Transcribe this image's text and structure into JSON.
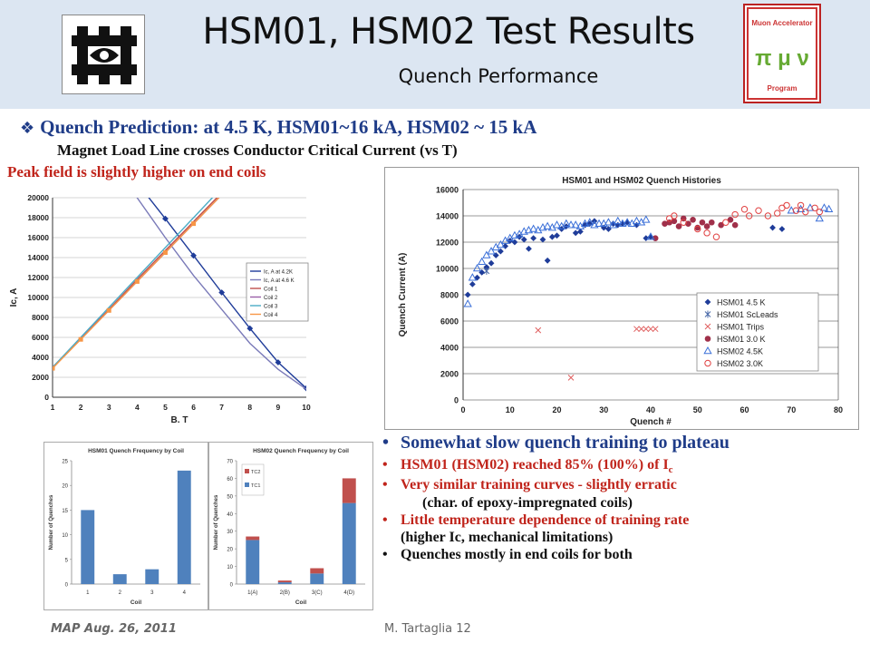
{
  "header": {
    "title": "HSM01, HSM02 Test Results",
    "subtitle": "Quench Performance"
  },
  "text": {
    "prediction": "Quench Prediction: at 4.5 K, HSM01~16 kA, HSM02 ~ 15 kA",
    "load_line": "Magnet Load Line crosses Conductor Critical Current (vs T)",
    "peak_field": "Peak field is slightly higher on end coils"
  },
  "bullets": [
    {
      "text": "Somewhat slow quench training to plateau",
      "style": "b1",
      "dot": "•"
    },
    {
      "text": "HSM01 (HSM02) reached 85% (100%) of I",
      "sub": "c",
      "style": "red",
      "dot": "•"
    },
    {
      "text": "Very similar training curves - slightly erratic",
      "style": "red",
      "dot": "•"
    },
    {
      "text": "(char. of epoxy-impregnated coils)",
      "style": "black indent",
      "dot": ""
    },
    {
      "text": "Little temperature dependence of training rate",
      "style": "red",
      "dot": "•"
    },
    {
      "text": "(higher Ic, mechanical limitations)",
      "style": "black cont",
      "dot": ""
    },
    {
      "text": "Quenches mostly in end coils for both",
      "style": "black",
      "dot": "•"
    }
  ],
  "footer": {
    "left": "MAP Aug. 26, 2011",
    "right": "M. Tartaglia    12"
  },
  "logos": {
    "fnal": "fermilab-logo",
    "map_lines": [
      "Muon Accelerator",
      "Program"
    ],
    "map_symbols": "π μ ν"
  },
  "chart_data": [
    {
      "type": "line",
      "xlabel": "B, T",
      "ylabel": "Ic, A",
      "xlim": [
        1,
        10
      ],
      "ylim": [
        0,
        20000
      ],
      "xticks": [
        1,
        2,
        3,
        4,
        5,
        6,
        7,
        8,
        9,
        10
      ],
      "yticks": [
        0,
        2000,
        4000,
        6000,
        8000,
        10000,
        12000,
        14000,
        16000,
        18000,
        20000
      ],
      "legend_position": "right",
      "series": [
        {
          "name": "Ic, A at 4.2K",
          "color": "#1f3c99",
          "marker": "diamond",
          "x": [
            4,
            5,
            6,
            7,
            8,
            9,
            10
          ],
          "y": [
            21500,
            17900,
            14200,
            10500,
            6900,
            3500,
            900
          ]
        },
        {
          "name": "Ic, A at 4.6 K",
          "color": "#7a7ab8",
          "marker": "none",
          "x": [
            3,
            4,
            5,
            6,
            7,
            8,
            9,
            10
          ],
          "y": [
            24000,
            20000,
            16000,
            12200,
            8800,
            5400,
            2800,
            800
          ]
        },
        {
          "name": "Coil 1",
          "color": "#c0504d",
          "marker": "none",
          "x": [
            1,
            2,
            3,
            4,
            5,
            6,
            7
          ],
          "y": [
            3000,
            5900,
            8800,
            11800,
            14700,
            17600,
            20500
          ]
        },
        {
          "name": "Coil 2",
          "color": "#9b5fa8",
          "marker": "none",
          "x": [
            1,
            2,
            3,
            4,
            5,
            6,
            7
          ],
          "y": [
            3000,
            5850,
            8700,
            11600,
            14500,
            17400,
            20300
          ]
        },
        {
          "name": "Coil 3",
          "color": "#4bacc6",
          "marker": "none",
          "x": [
            1,
            2,
            3,
            4,
            5,
            6,
            7
          ],
          "y": [
            3000,
            6000,
            9000,
            12000,
            15000,
            18000,
            21000
          ]
        },
        {
          "name": "Coil 4",
          "color": "#f79646",
          "marker": "square",
          "x": [
            1,
            2,
            3,
            4,
            5,
            6,
            7
          ],
          "y": [
            2900,
            5800,
            8700,
            11600,
            14500,
            17400,
            20300
          ]
        }
      ]
    },
    {
      "type": "scatter",
      "title": "HSM01 and HSM02 Quench Histories",
      "xlabel": "Quench #",
      "ylabel": "Quench Current (A)",
      "xlim": [
        0,
        80
      ],
      "ylim": [
        0,
        16000
      ],
      "xticks": [
        0,
        10,
        20,
        30,
        40,
        50,
        60,
        70,
        80
      ],
      "yticks": [
        0,
        2000,
        4000,
        6000,
        8000,
        10000,
        12000,
        14000,
        16000
      ],
      "legend_position": "bottom-right",
      "series": [
        {
          "name": "HSM01 4.5 K",
          "color": "#1f3c99",
          "marker": "diamond",
          "x": [
            1,
            2,
            3,
            4,
            5,
            6,
            7,
            8,
            9,
            10,
            11,
            12,
            13,
            14,
            15,
            17,
            18,
            19,
            20,
            21,
            22,
            24,
            25,
            26,
            27,
            28,
            30,
            31,
            32,
            33,
            34,
            35,
            37,
            39,
            40,
            66,
            68
          ],
          "y": [
            8000,
            8800,
            9300,
            9700,
            10100,
            10400,
            11000,
            11300,
            11700,
            12100,
            12000,
            12400,
            12200,
            11500,
            12300,
            12200,
            10600,
            12400,
            12500,
            13000,
            13200,
            12700,
            12800,
            13300,
            13400,
            13600,
            13100,
            13000,
            13400,
            13300,
            13400,
            13500,
            13300,
            12300,
            12400,
            13100,
            13000
          ]
        },
        {
          "name": "HSM01 ScLeads",
          "color": "#4a6aa8",
          "marker": "asterisk",
          "x": [
            5
          ],
          "y": [
            9800
          ]
        },
        {
          "name": "HSM01 Trips",
          "color": "#e06060",
          "marker": "x",
          "x": [
            16,
            23,
            37,
            38,
            39,
            40,
            41
          ],
          "y": [
            5300,
            1700,
            5400,
            5400,
            5400,
            5400,
            5400
          ]
        },
        {
          "name": "HSM01 3.0 K",
          "color": "#a0304a",
          "marker": "circle-filled",
          "x": [
            41,
            43,
            44,
            45,
            46,
            47,
            48,
            49,
            50,
            51,
            52,
            53,
            55,
            57,
            58
          ],
          "y": [
            12300,
            13400,
            13500,
            13600,
            13200,
            13800,
            13400,
            13700,
            13100,
            13500,
            13200,
            13500,
            13300,
            13700,
            13300
          ]
        },
        {
          "name": "HSM02 4.5K",
          "color": "#3a6fd8",
          "marker": "triangle",
          "x": [
            1,
            2,
            3,
            4,
            5,
            6,
            7,
            8,
            9,
            10,
            11,
            12,
            13,
            14,
            15,
            16,
            17,
            18,
            19,
            20,
            21,
            22,
            23,
            24,
            25,
            26,
            27,
            28,
            29,
            30,
            31,
            32,
            33,
            34,
            35,
            36,
            37,
            38,
            39,
            40,
            70,
            72,
            74,
            76,
            77,
            78
          ],
          "y": [
            7300,
            9300,
            10000,
            10500,
            11000,
            11300,
            11600,
            11800,
            12100,
            12300,
            12500,
            12600,
            12800,
            12900,
            13000,
            12900,
            13100,
            13200,
            13100,
            13300,
            13200,
            13400,
            13300,
            13300,
            13200,
            13400,
            13500,
            13300,
            13400,
            13400,
            13500,
            13300,
            13600,
            13400,
            13500,
            13400,
            13600,
            13500,
            13700,
            12400,
            14400,
            14500,
            14600,
            13800,
            14600,
            14500
          ]
        },
        {
          "name": "HSM02 3.0K",
          "color": "#e04040",
          "marker": "circle",
          "x": [
            44,
            45,
            47,
            50,
            52,
            54,
            56,
            58,
            60,
            61,
            63,
            65,
            67,
            68,
            69,
            71,
            72,
            73,
            75,
            76
          ],
          "y": [
            13800,
            14000,
            13500,
            13000,
            12700,
            12400,
            13500,
            14100,
            14500,
            14000,
            14400,
            14000,
            14200,
            14600,
            14800,
            14400,
            14800,
            14300,
            14600,
            14300
          ]
        }
      ]
    },
    {
      "type": "bar",
      "title": "HSM01 Quench Frequency by Coil",
      "xlabel": "Coil",
      "ylabel": "Number of Quenches",
      "ylim": [
        0,
        25
      ],
      "yticks": [
        0,
        5,
        10,
        15,
        20,
        25
      ],
      "categories": [
        "1",
        "2",
        "3",
        "4"
      ],
      "series": [
        {
          "color": "#4f81bd",
          "values": [
            15,
            2,
            3,
            23
          ]
        }
      ]
    },
    {
      "type": "bar",
      "title": "HSM02 Quench Frequency by Coil",
      "xlabel": "Coil",
      "ylabel": "Number of Quenches",
      "ylim": [
        0,
        70
      ],
      "yticks": [
        0,
        10,
        20,
        30,
        40,
        50,
        60,
        70
      ],
      "categories": [
        "1(A)",
        "2(B)",
        "3(C)",
        "4(D)"
      ],
      "stacked": true,
      "legend_position": "top-left",
      "series": [
        {
          "name": "TC1",
          "color": "#4f81bd",
          "values": [
            25,
            1,
            6,
            46
          ]
        },
        {
          "name": "TC2",
          "color": "#c0504d",
          "values": [
            2,
            1,
            3,
            14
          ]
        }
      ]
    }
  ]
}
